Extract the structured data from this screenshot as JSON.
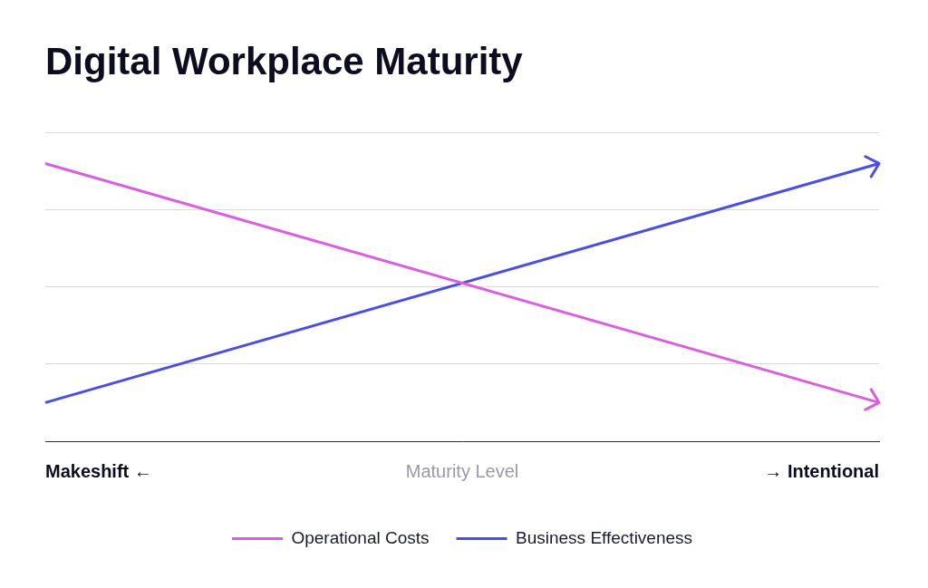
{
  "chart_data": {
    "type": "line",
    "title": "Digital Workplace Maturity",
    "x_label": "Maturity Level",
    "categories": [
      "Makeshift ←",
      "→ Intentional"
    ],
    "series": [
      {
        "name": "Operational Costs",
        "color": "#d95fe0",
        "values": [
          3.6,
          0.5
        ]
      },
      {
        "name": "Business Effectiveness",
        "color": "#4b4de6",
        "values": [
          0.5,
          3.6
        ]
      }
    ],
    "ylim": [
      0,
      4
    ],
    "yticks": [
      0,
      1,
      2,
      3,
      4
    ],
    "grid": true,
    "legend": "bottom",
    "tick_labels": "x",
    "marker": "arrow"
  }
}
